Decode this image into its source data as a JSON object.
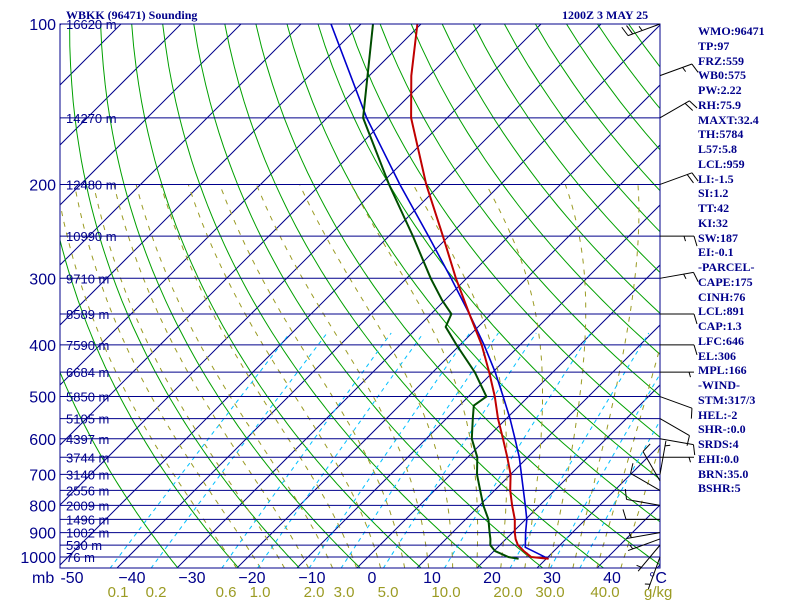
{
  "header": {
    "title": "WBKK (96471) Sounding",
    "timestamp": "1200Z  3 MAY 25"
  },
  "indices": [
    "WMO:96471",
    "TP:97",
    "FRZ:559",
    "WB0:575",
    "PW:2.22",
    "RH:75.9",
    "MAXT:32.4",
    "TH:5784",
    "L57:5.8",
    "LCL:959",
    "LI:-1.5",
    "SI:1.2",
    "TT:42",
    "KI:32",
    "SW:187",
    "EI:-0.1",
    "-PARCEL-",
    "CAPE:175",
    "CINH:76",
    "LCL:891",
    "CAP:1.3",
    "LFC:646",
    "EL:306",
    "MPL:166",
    "-WIND-",
    "STM:317/3",
    "HEL:-2",
    "SHR-:0.0",
    "SRDS:4",
    "EHI:0.0",
    "BRN:35.0",
    "BSHR:5"
  ],
  "colors": {
    "frame": "#00008b",
    "isobar": "#00008b",
    "isotherm": "#00008b",
    "dry_adiabat": "#00a000",
    "moist_adiabat": "#9b9b23",
    "mixing_ratio": "#00bfff",
    "temperature": "#c00000",
    "dewpoint": "#004d00",
    "parcel": "#0000cd",
    "wind": "#000000"
  },
  "chart_data": {
    "type": "skew-t log-p",
    "x_axis_label": "°C",
    "y_axis_label": "mb",
    "pressure_levels": [
      100,
      200,
      300,
      400,
      500,
      600,
      700,
      800,
      900,
      1000
    ],
    "pressure_range": [
      100,
      1050
    ],
    "temperature_ticks": [
      -50,
      -40,
      -30,
      -20,
      -10,
      0,
      10,
      20,
      30,
      40
    ],
    "temperature_tick_labels": [
      "-50",
      "−40",
      "−30",
      "−20",
      "−10",
      "0",
      "10",
      "20",
      "30",
      "40"
    ],
    "mixing_ratio_labels": [
      "0.1",
      "0.2",
      "0.6",
      "1.0",
      "2.0",
      "3.0",
      "5.0",
      "10.0",
      "20.0",
      "30.0",
      "40.0"
    ],
    "mixing_ratio_unit": "g/kg",
    "height_labels": [
      {
        "p": 100,
        "label": "16620 m"
      },
      {
        "p": 150,
        "label": "14270 m"
      },
      {
        "p": 200,
        "label": "12480 m"
      },
      {
        "p": 250,
        "label": "10990 m"
      },
      {
        "p": 300,
        "label": "9710 m"
      },
      {
        "p": 350,
        "label": "8589 m"
      },
      {
        "p": 400,
        "label": "7590 m"
      },
      {
        "p": 450,
        "label": "6684 m"
      },
      {
        "p": 500,
        "label": "5850 m"
      },
      {
        "p": 550,
        "label": "5105 m"
      },
      {
        "p": 600,
        "label": "4397 m"
      },
      {
        "p": 650,
        "label": "3744 m"
      },
      {
        "p": 700,
        "label": "3140 m"
      },
      {
        "p": 750,
        "label": "2556 m"
      },
      {
        "p": 800,
        "label": "2009 m"
      },
      {
        "p": 850,
        "label": "1496 m"
      },
      {
        "p": 900,
        "label": "1002 m"
      },
      {
        "p": 950,
        "label": "530 m"
      },
      {
        "p": 1000,
        "label": "76 m"
      }
    ],
    "temperature_profile": [
      {
        "p": 1008,
        "t": 30.4
      },
      {
        "p": 1000,
        "t": 27.2
      },
      {
        "p": 975,
        "t": 25.0
      },
      {
        "p": 950,
        "t": 23.0
      },
      {
        "p": 925,
        "t": 21.6
      },
      {
        "p": 900,
        "t": 20.4
      },
      {
        "p": 850,
        "t": 18.2
      },
      {
        "p": 800,
        "t": 15.4
      },
      {
        "p": 750,
        "t": 12.6
      },
      {
        "p": 700,
        "t": 10.0
      },
      {
        "p": 650,
        "t": 6.6
      },
      {
        "p": 600,
        "t": 2.8
      },
      {
        "p": 550,
        "t": -1.4
      },
      {
        "p": 500,
        "t": -5.6
      },
      {
        "p": 450,
        "t": -10.6
      },
      {
        "p": 400,
        "t": -16.4
      },
      {
        "p": 350,
        "t": -23.6
      },
      {
        "p": 300,
        "t": -31.8
      },
      {
        "p": 250,
        "t": -41.0
      },
      {
        "p": 200,
        "t": -52.4
      },
      {
        "p": 150,
        "t": -66.0
      },
      {
        "p": 125,
        "t": -73.0
      },
      {
        "p": 100,
        "t": -80.6
      }
    ],
    "dewpoint_profile": [
      {
        "p": 1008,
        "t": 25.4
      },
      {
        "p": 1000,
        "t": 23.4
      },
      {
        "p": 975,
        "t": 20.2
      },
      {
        "p": 950,
        "t": 18.4
      },
      {
        "p": 925,
        "t": 17.4
      },
      {
        "p": 900,
        "t": 16.2
      },
      {
        "p": 850,
        "t": 13.8
      },
      {
        "p": 800,
        "t": 10.6
      },
      {
        "p": 750,
        "t": 7.6
      },
      {
        "p": 700,
        "t": 4.4
      },
      {
        "p": 650,
        "t": 1.6
      },
      {
        "p": 600,
        "t": -2.4
      },
      {
        "p": 550,
        "t": -5.6
      },
      {
        "p": 520,
        "t": -7.6
      },
      {
        "p": 500,
        "t": -7.0
      },
      {
        "p": 450,
        "t": -13.0
      },
      {
        "p": 400,
        "t": -20.6
      },
      {
        "p": 370,
        "t": -25.4
      },
      {
        "p": 350,
        "t": -26.6
      },
      {
        "p": 330,
        "t": -30.4
      },
      {
        "p": 300,
        "t": -36.0
      },
      {
        "p": 250,
        "t": -46.0
      },
      {
        "p": 200,
        "t": -58.6
      },
      {
        "p": 150,
        "t": -74.0
      },
      {
        "p": 100,
        "t": -88.0
      }
    ],
    "parcel_profile": [
      {
        "p": 1008,
        "t": 30.4
      },
      {
        "p": 959,
        "t": 24.6
      },
      {
        "p": 900,
        "t": 22.2
      },
      {
        "p": 850,
        "t": 20.2
      },
      {
        "p": 800,
        "t": 17.6
      },
      {
        "p": 750,
        "t": 14.8
      },
      {
        "p": 700,
        "t": 11.8
      },
      {
        "p": 650,
        "t": 8.6
      },
      {
        "p": 600,
        "t": 4.8
      },
      {
        "p": 550,
        "t": 0.6
      },
      {
        "p": 500,
        "t": -4.2
      },
      {
        "p": 450,
        "t": -9.6
      },
      {
        "p": 400,
        "t": -16.0
      },
      {
        "p": 350,
        "t": -23.6
      },
      {
        "p": 300,
        "t": -32.6
      },
      {
        "p": 250,
        "t": -43.4
      },
      {
        "p": 200,
        "t": -56.8
      },
      {
        "p": 150,
        "t": -73.4
      },
      {
        "p": 100,
        "t": -95.0
      }
    ],
    "wind_barbs": [
      {
        "p": 1000,
        "dir": 200,
        "kt": 5
      },
      {
        "p": 950,
        "dir": 220,
        "kt": 5
      },
      {
        "p": 925,
        "dir": 250,
        "kt": 5
      },
      {
        "p": 900,
        "dir": 260,
        "kt": 5
      },
      {
        "p": 850,
        "dir": 270,
        "kt": 10
      },
      {
        "p": 800,
        "dir": 280,
        "kt": 10
      },
      {
        "p": 750,
        "dir": 300,
        "kt": 10
      },
      {
        "p": 720,
        "dir": 330,
        "kt": 10
      },
      {
        "p": 700,
        "dir": 10,
        "kt": 5
      },
      {
        "p": 650,
        "dir": 90,
        "kt": 5
      },
      {
        "p": 600,
        "dir": 100,
        "kt": 10
      },
      {
        "p": 550,
        "dir": 120,
        "kt": 10
      },
      {
        "p": 500,
        "dir": 110,
        "kt": 10
      },
      {
        "p": 450,
        "dir": 90,
        "kt": 5
      },
      {
        "p": 400,
        "dir": 90,
        "kt": 10
      },
      {
        "p": 350,
        "dir": 90,
        "kt": 10
      },
      {
        "p": 300,
        "dir": 80,
        "kt": 15
      },
      {
        "p": 250,
        "dir": 90,
        "kt": 15
      },
      {
        "p": 200,
        "dir": 70,
        "kt": 20
      },
      {
        "p": 150,
        "dir": 60,
        "kt": 20
      },
      {
        "p": 125,
        "dir": 70,
        "kt": 15
      },
      {
        "p": 100,
        "dir": 250,
        "kt": 25
      }
    ]
  }
}
